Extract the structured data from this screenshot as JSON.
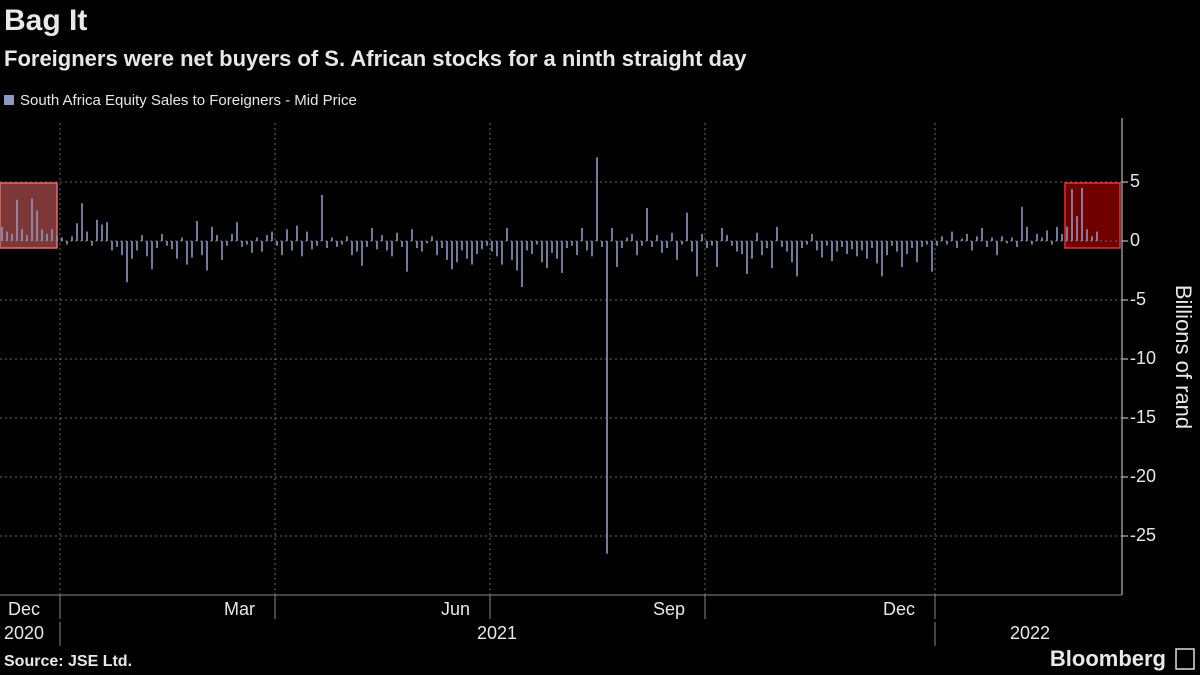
{
  "chart_data": {
    "type": "bar",
    "title": "Bag It",
    "subtitle": "Foreigners were net buyers of S. African stocks for a ninth straight day",
    "y_label": "Billions of rand",
    "source": "Source: JSE Ltd.",
    "brand": "Bloomberg",
    "years": [
      "2020",
      "2021",
      "2022"
    ],
    "categories": [
      null,
      null,
      null,
      null,
      null,
      null,
      null,
      null,
      null,
      null,
      null,
      null,
      "Dec",
      null,
      null,
      null,
      null,
      null,
      null,
      null,
      null,
      null,
      null,
      null,
      null,
      null,
      null,
      null,
      null,
      null,
      null,
      null,
      null,
      null,
      null,
      null,
      null,
      null,
      null,
      null,
      null,
      null,
      null,
      null,
      null,
      null,
      null,
      null,
      null,
      null,
      null,
      null,
      null,
      null,
      null,
      "Mar",
      null,
      null,
      null,
      null,
      null,
      null,
      null,
      null,
      null,
      null,
      null,
      null,
      null,
      null,
      null,
      null,
      null,
      null,
      null,
      null,
      null,
      null,
      null,
      null,
      null,
      null,
      null,
      null,
      null,
      null,
      null,
      null,
      null,
      null,
      null,
      null,
      null,
      null,
      null,
      null,
      null,
      null,
      "Jun",
      null,
      null,
      null,
      null,
      null,
      null,
      null,
      null,
      null,
      null,
      null,
      null,
      null,
      null,
      null,
      null,
      null,
      null,
      null,
      null,
      null,
      null,
      null,
      null,
      null,
      null,
      null,
      null,
      null,
      null,
      null,
      null,
      null,
      null,
      null,
      null,
      null,
      null,
      null,
      null,
      null,
      null,
      "Sep",
      null,
      null,
      null,
      null,
      null,
      null,
      null,
      null,
      null,
      null,
      null,
      null,
      null,
      null,
      null,
      null,
      null,
      null,
      null,
      null,
      null,
      null,
      null,
      null,
      null,
      null,
      null,
      null,
      null,
      null,
      null,
      null,
      null,
      null,
      null,
      null,
      null,
      null,
      null,
      null,
      null,
      null,
      null,
      null,
      null,
      "Dec",
      null,
      null,
      null,
      null,
      null,
      null,
      null,
      null,
      null,
      null,
      null,
      null,
      null,
      null,
      null,
      null,
      null,
      null,
      null,
      null,
      null,
      null,
      null,
      null,
      null,
      null,
      null,
      null,
      null,
      null,
      null,
      null
    ],
    "series": [
      {
        "name": "South Africa Equity Sales to Foreigners - Mid Price",
        "color": "#8e99bf",
        "values": [
          1.2,
          0.8,
          0.6,
          3.5,
          1.0,
          0.5,
          3.6,
          2.6,
          1.0,
          0.6,
          1.0,
          0.4,
          0.3,
          -0.3,
          0.4,
          1.5,
          3.2,
          0.8,
          -0.4,
          1.8,
          1.4,
          1.6,
          -0.8,
          -0.5,
          -1.2,
          -3.5,
          -1.5,
          -0.8,
          0.5,
          -1.3,
          -2.4,
          -0.6,
          0.6,
          -0.4,
          -0.7,
          -1.5,
          0.3,
          -2.0,
          -1.4,
          1.7,
          -1.2,
          -2.5,
          1.2,
          0.5,
          -1.6,
          -0.4,
          0.6,
          1.6,
          -0.5,
          -0.3,
          -1.0,
          0.3,
          -0.9,
          0.5,
          0.8,
          -0.4,
          -1.2,
          1.0,
          -0.8,
          1.3,
          -1.3,
          0.8,
          -0.7,
          -0.4,
          3.9,
          -0.6,
          0.3,
          -0.5,
          -0.3,
          0.4,
          -1.2,
          -0.9,
          -2.1,
          -0.5,
          1.1,
          -0.7,
          0.5,
          -0.8,
          -1.3,
          0.7,
          -0.5,
          -2.6,
          1.0,
          -0.6,
          -0.9,
          -0.2,
          0.4,
          -1.2,
          -0.6,
          -1.6,
          -2.4,
          -1.8,
          -0.8,
          -1.5,
          -2.0,
          -1.1,
          -0.7,
          -0.4,
          -0.9,
          -1.3,
          -2.0,
          1.1,
          -1.6,
          -2.5,
          -3.9,
          -0.8,
          -1.1,
          -0.3,
          -1.8,
          -2.3,
          -1.0,
          -1.5,
          -2.7,
          -0.6,
          -0.4,
          -1.2,
          1.1,
          -0.8,
          -1.3,
          7.1,
          -0.5,
          -26.5,
          1.1,
          -2.2,
          -0.6,
          0.3,
          0.6,
          -1.2,
          -0.4,
          2.8,
          -0.5,
          0.5,
          -1.0,
          -0.6,
          0.7,
          -1.6,
          -0.3,
          2.4,
          -0.9,
          -3.0,
          0.6,
          -0.6,
          -0.4,
          -2.2,
          1.1,
          0.5,
          -0.4,
          -0.9,
          -1.1,
          -2.8,
          -1.5,
          0.7,
          -1.2,
          -0.6,
          -2.3,
          1.2,
          -0.5,
          -0.9,
          -1.8,
          -3.0,
          -0.6,
          -0.3,
          0.6,
          -0.8,
          -1.4,
          -0.4,
          -1.7,
          -0.9,
          -0.5,
          -1.1,
          -0.7,
          -1.3,
          -0.8,
          -1.5,
          -0.6,
          -1.9,
          -3.0,
          -1.2,
          -0.4,
          -0.9,
          -2.2,
          -1.1,
          -0.6,
          -1.8,
          -0.5,
          -0.3,
          -2.6,
          -0.4,
          0.4,
          -0.3,
          0.8,
          -0.6,
          0.2,
          0.6,
          -0.8,
          0.4,
          1.1,
          -0.5,
          0.3,
          -1.2,
          0.4,
          -0.2,
          0.3,
          -0.5,
          2.9,
          1.2,
          -0.3,
          0.6,
          0.3,
          0.9,
          -0.3,
          1.2,
          0.6,
          1.2,
          4.4,
          2.1,
          4.5,
          1.0,
          0.4,
          0.8
        ]
      }
    ],
    "ylim": [
      -30,
      10
    ],
    "yticks": [
      -25,
      -20,
      -15,
      -10,
      -5,
      0,
      5
    ],
    "grid": true
  }
}
